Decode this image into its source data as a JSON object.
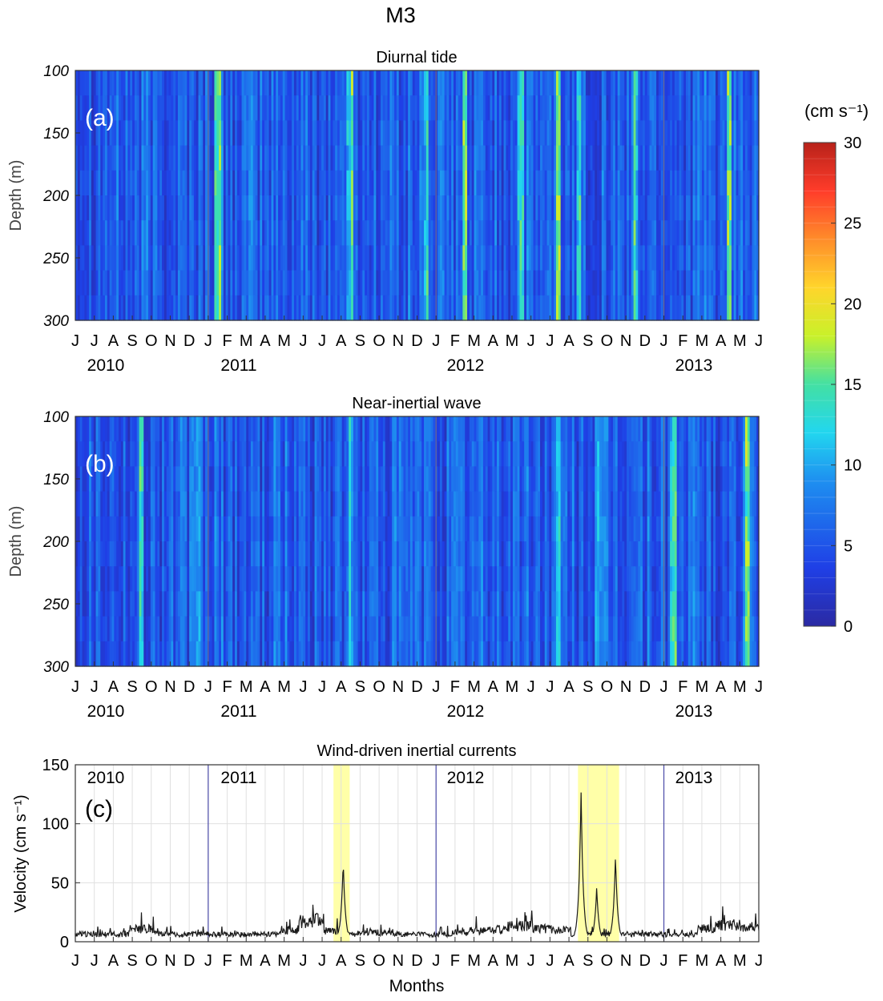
{
  "figure_title": "M3",
  "months": "Months",
  "colorbar": {
    "unit": "(cm s⁻¹)",
    "ticks": [
      0,
      5,
      10,
      15,
      20,
      25,
      30
    ],
    "range": [
      0,
      30
    ]
  },
  "chart_data": [
    {
      "type": "heatmap",
      "panel_label": "(a)",
      "title": "Diurnal tide",
      "ylabel": "Depth (m)",
      "xlabel": "",
      "ylim": [
        300,
        100
      ],
      "y_ticks": [
        100,
        150,
        200,
        250,
        300
      ],
      "x_month_ticks": [
        "J",
        "J",
        "A",
        "S",
        "O",
        "N",
        "D",
        "J",
        "F",
        "M",
        "A",
        "M",
        "J",
        "J",
        "A",
        "S",
        "O",
        "N",
        "D",
        "J",
        "F",
        "M",
        "A",
        "M",
        "J",
        "J",
        "A",
        "S",
        "O",
        "N",
        "D",
        "J",
        "F",
        "M",
        "A",
        "M",
        "J"
      ],
      "x_range": [
        "2010-06",
        "2013-06"
      ],
      "year_labels": [
        "2010",
        "2011",
        "2012",
        "2013"
      ],
      "colormap": "jet",
      "clim": [
        0,
        30
      ],
      "value_units": "cm s-1",
      "value_range_observed": [
        1,
        19
      ],
      "peaks": [
        {
          "month": "2011-01",
          "value": 16
        },
        {
          "month": "2011-08",
          "value": 15
        },
        {
          "month": "2011-12",
          "value": 16
        },
        {
          "month": "2012-02",
          "value": 17
        },
        {
          "month": "2012-05",
          "value": 16
        },
        {
          "month": "2012-07",
          "value": 18
        },
        {
          "month": "2012-08",
          "value": 17
        },
        {
          "month": "2012-11",
          "value": 16
        },
        {
          "month": "2013-04",
          "value": 15
        }
      ]
    },
    {
      "type": "heatmap",
      "panel_label": "(b)",
      "title": "Near-inertial wave",
      "ylabel": "Depth (m)",
      "xlabel": "",
      "ylim": [
        300,
        100
      ],
      "y_ticks": [
        100,
        150,
        200,
        250,
        300
      ],
      "x_month_ticks": [
        "J",
        "J",
        "A",
        "S",
        "O",
        "N",
        "D",
        "J",
        "F",
        "M",
        "A",
        "M",
        "J",
        "J",
        "A",
        "S",
        "O",
        "N",
        "D",
        "J",
        "F",
        "M",
        "A",
        "M",
        "J",
        "J",
        "A",
        "S",
        "O",
        "N",
        "D",
        "J",
        "F",
        "M",
        "A",
        "M",
        "J"
      ],
      "x_range": [
        "2010-06",
        "2013-06"
      ],
      "year_labels": [
        "2010",
        "2011",
        "2012",
        "2013"
      ],
      "colormap": "jet",
      "clim": [
        0,
        30
      ],
      "value_units": "cm s-1",
      "value_range_observed": [
        1,
        20
      ],
      "peaks": [
        {
          "month": "2010-09",
          "value": 14
        },
        {
          "month": "2010-12",
          "value": 12
        },
        {
          "month": "2011-08",
          "value": 11
        },
        {
          "month": "2012-07",
          "value": 11
        },
        {
          "month": "2012-09",
          "value": 10
        },
        {
          "month": "2013-01",
          "value": 16
        },
        {
          "month": "2013-05",
          "value": 20
        }
      ]
    },
    {
      "type": "line",
      "panel_label": "(c)",
      "title": "Wind-driven inertial currents",
      "xlabel": "Months",
      "ylabel": "Velocity (cm s⁻¹)",
      "ylim": [
        0,
        150
      ],
      "y_ticks": [
        0,
        50,
        100,
        150
      ],
      "x_month_ticks": [
        "J",
        "J",
        "A",
        "S",
        "O",
        "N",
        "D",
        "J",
        "F",
        "M",
        "A",
        "M",
        "J",
        "J",
        "A",
        "S",
        "O",
        "N",
        "D",
        "J",
        "F",
        "M",
        "A",
        "M",
        "J",
        "J",
        "A",
        "S",
        "O",
        "N",
        "D",
        "J",
        "F",
        "M",
        "A",
        "M",
        "J"
      ],
      "x_range": [
        "2010-06",
        "2013-06"
      ],
      "year_labels": [
        "2010",
        "2011",
        "2012",
        "2013"
      ],
      "grid": true,
      "highlight_ranges": [
        {
          "start": "2011-07-20",
          "end": "2011-08-15",
          "color": "#ffff99"
        },
        {
          "start": "2012-08-15",
          "end": "2012-10-20",
          "color": "#ffff99"
        }
      ],
      "series": [
        {
          "color": "#1a1a1a",
          "x": [
            "2010-06",
            "2010-07",
            "2010-08",
            "2010-09",
            "2010-10",
            "2010-11",
            "2010-12",
            "2011-01",
            "2011-02",
            "2011-03",
            "2011-04",
            "2011-05",
            "2011-06",
            "2011-07",
            "2011-08-05",
            "2011-09",
            "2011-10",
            "2011-11",
            "2011-12",
            "2012-01",
            "2012-02",
            "2012-03",
            "2012-04",
            "2012-05",
            "2012-06",
            "2012-07",
            "2012-08",
            "2012-08-20",
            "2012-09-15",
            "2012-10-15",
            "2012-11",
            "2012-12",
            "2013-01",
            "2013-02",
            "2013-03",
            "2013-04",
            "2013-05",
            "2013-06"
          ],
          "y": [
            12,
            8,
            9,
            20,
            13,
            10,
            12,
            6,
            4,
            9,
            12,
            17,
            33,
            17,
            69,
            14,
            13,
            10,
            9,
            10,
            14,
            17,
            19,
            24,
            20,
            18,
            11,
            128,
            46,
            73,
            12,
            9,
            8,
            10,
            20,
            26,
            23,
            6
          ]
        }
      ]
    }
  ]
}
